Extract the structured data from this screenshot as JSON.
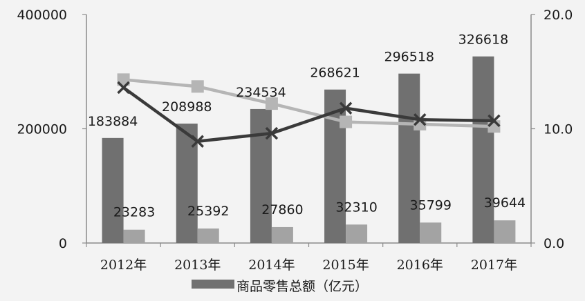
{
  "chart_data": {
    "type": "bar",
    "categories": [
      "2012年",
      "2013年",
      "2014年",
      "2015年",
      "2016年",
      "2017年"
    ],
    "series": [
      {
        "name": "商品零售总额（亿元）",
        "kind": "bar",
        "axis": "left",
        "color": "#707070",
        "values": [
          183884,
          208988,
          234534,
          268621,
          296518,
          326618
        ]
      },
      {
        "kind": "bar",
        "axis": "left",
        "color": "#a3a3a3",
        "values": [
          23283,
          25392,
          27860,
          32310,
          35799,
          39644
        ]
      },
      {
        "kind": "line",
        "axis": "right",
        "marker": "square",
        "color": "#b5b5b5",
        "values": [
          14.3,
          13.7,
          12.2,
          10.6,
          10.4,
          10.2
        ]
      },
      {
        "kind": "line",
        "axis": "right",
        "marker": "x",
        "color": "#3a3a3a",
        "values": [
          13.6,
          8.9,
          9.6,
          11.8,
          10.8,
          10.7
        ]
      }
    ],
    "left_axis": {
      "ylim": [
        0,
        400000
      ],
      "ticks": [
        "0",
        "200000",
        "400000"
      ]
    },
    "right_axis": {
      "ylim": [
        0,
        20
      ],
      "ticks": [
        "0.0",
        "10.0",
        "20.0"
      ]
    },
    "legend": {
      "position": "bottom",
      "label": "商品零售总额（亿元）"
    },
    "grid": false
  }
}
